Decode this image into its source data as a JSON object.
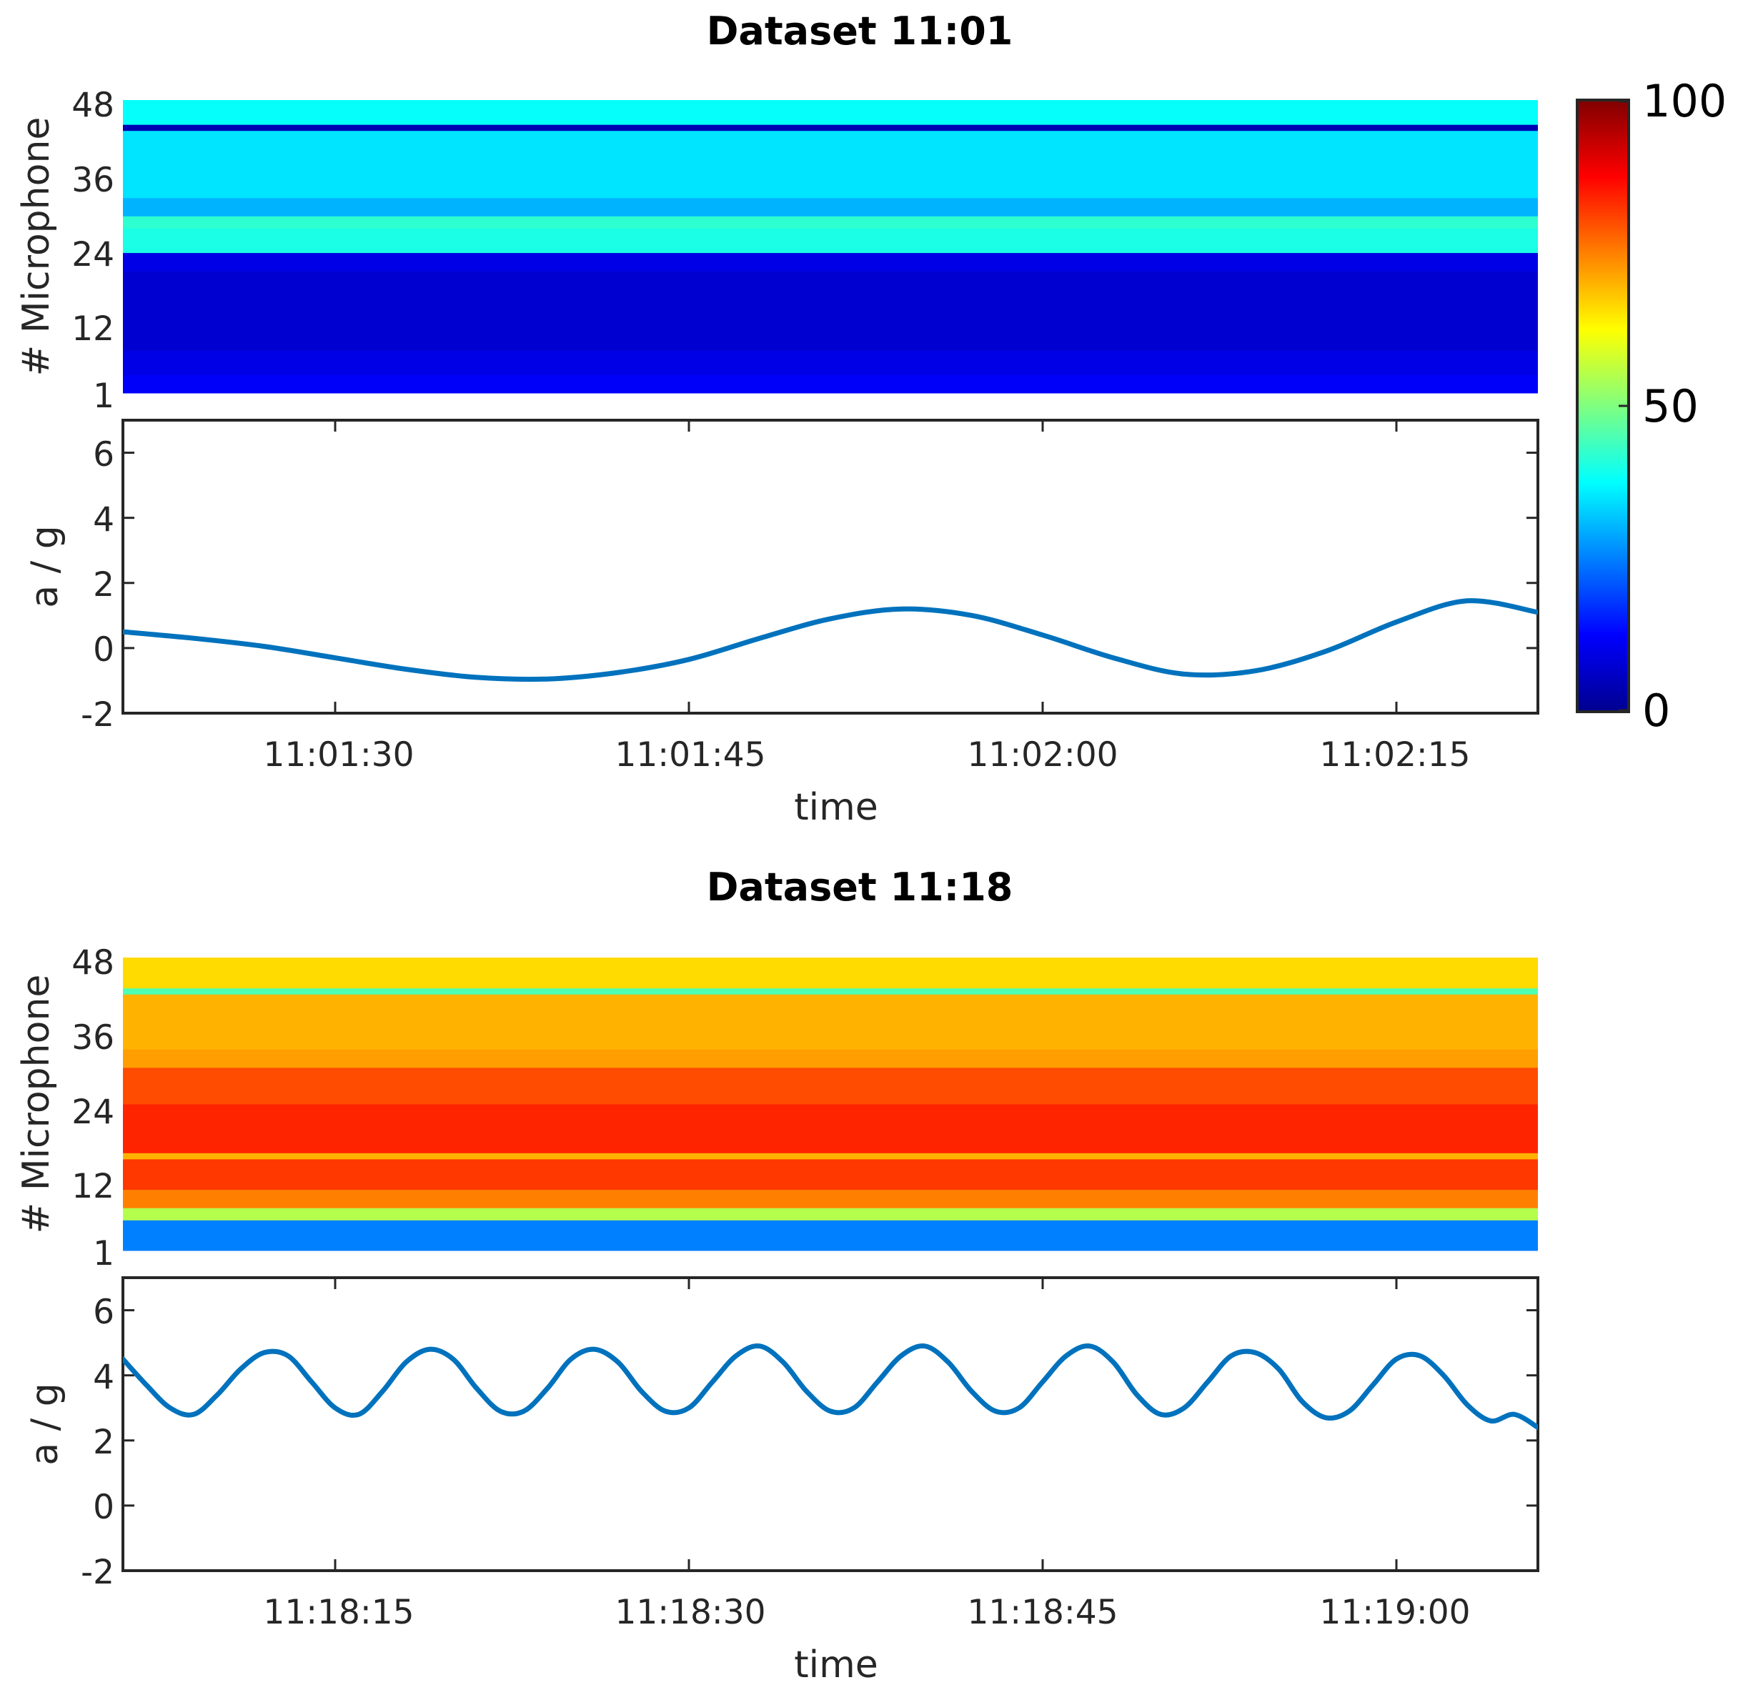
{
  "chart_data": [
    {
      "type": "heatmap",
      "title": "Dataset 11:01",
      "ylabel": "# Microphone",
      "yticks": [
        "1",
        "12",
        "24",
        "36",
        "48"
      ],
      "ylim": [
        1,
        48
      ],
      "colorbar": {
        "colormap": "jet",
        "range": [
          0,
          100
        ],
        "ticks": [
          "0",
          "50",
          "100"
        ]
      },
      "row_bands": [
        {
          "rows": [
            1,
            3
          ],
          "value": 12
        },
        {
          "rows": [
            4,
            7
          ],
          "value": 10
        },
        {
          "rows": [
            8,
            20
          ],
          "value": 8
        },
        {
          "rows": [
            21,
            23
          ],
          "value": 10
        },
        {
          "rows": [
            24,
            27
          ],
          "value": 40
        },
        {
          "rows": [
            28,
            29
          ],
          "value": 42
        },
        {
          "rows": [
            30,
            32
          ],
          "value": 30
        },
        {
          "rows": [
            33,
            43
          ],
          "value": 35
        },
        {
          "rows": [
            44,
            44
          ],
          "value": 5
        },
        {
          "rows": [
            45,
            48
          ],
          "value": 38
        }
      ]
    },
    {
      "type": "line",
      "ylabel": "a / g",
      "xlabel": "time",
      "ylim": [
        -2,
        7
      ],
      "yticks": [
        "-2",
        "0",
        "2",
        "4",
        "6"
      ],
      "xticks": [
        "11:01:30",
        "11:01:45",
        "11:02:00",
        "11:02:15"
      ],
      "xlim": [
        "11:01:21",
        "11:02:21"
      ],
      "line_color": "#0072bd",
      "x": [
        "11:01:21",
        "11:01:24",
        "11:01:27",
        "11:01:30",
        "11:01:33",
        "11:01:36",
        "11:01:39",
        "11:01:42",
        "11:01:45",
        "11:01:48",
        "11:01:51",
        "11:01:54",
        "11:01:57",
        "11:02:00",
        "11:02:03",
        "11:02:06",
        "11:02:09",
        "11:02:12",
        "11:02:15",
        "11:02:18",
        "11:02:21"
      ],
      "y": [
        0.5,
        0.3,
        0.05,
        -0.3,
        -0.65,
        -0.9,
        -0.95,
        -0.75,
        -0.35,
        0.3,
        0.9,
        1.2,
        1.0,
        0.4,
        -0.3,
        -0.8,
        -0.7,
        -0.1,
        0.8,
        1.45,
        1.1
      ]
    },
    {
      "type": "heatmap",
      "title": "Dataset 11:18",
      "ylabel": "# Microphone",
      "yticks": [
        "1",
        "12",
        "24",
        "36",
        "48"
      ],
      "ylim": [
        1,
        48
      ],
      "row_bands": [
        {
          "rows": [
            1,
            5
          ],
          "value": 25
        },
        {
          "rows": [
            6,
            7
          ],
          "value": 55
        },
        {
          "rows": [
            8,
            10
          ],
          "value": 75
        },
        {
          "rows": [
            11,
            15
          ],
          "value": 82
        },
        {
          "rows": [
            16,
            16
          ],
          "value": 70
        },
        {
          "rows": [
            17,
            24
          ],
          "value": 84
        },
        {
          "rows": [
            25,
            30
          ],
          "value": 80
        },
        {
          "rows": [
            31,
            33
          ],
          "value": 72
        },
        {
          "rows": [
            34,
            42
          ],
          "value": 70
        },
        {
          "rows": [
            43,
            43
          ],
          "value": 45
        },
        {
          "rows": [
            44,
            48
          ],
          "value": 66
        }
      ]
    },
    {
      "type": "line",
      "ylabel": "a / g",
      "xlabel": "time",
      "ylim": [
        -2,
        7
      ],
      "yticks": [
        "-2",
        "0",
        "2",
        "4",
        "6"
      ],
      "xticks": [
        "11:18:15",
        "11:18:30",
        "11:18:45",
        "11:19:00"
      ],
      "xlim": [
        "11:18:06",
        "11:19:06"
      ],
      "line_color": "#0072bd",
      "x": [
        "11:18:06",
        "11:18:07",
        "11:18:08",
        "11:18:09",
        "11:18:10",
        "11:18:11",
        "11:18:12",
        "11:18:13",
        "11:18:14",
        "11:18:15",
        "11:18:16",
        "11:18:17",
        "11:18:18",
        "11:18:19",
        "11:18:20",
        "11:18:21",
        "11:18:22",
        "11:18:23",
        "11:18:24",
        "11:18:25",
        "11:18:26",
        "11:18:27",
        "11:18:28",
        "11:18:29",
        "11:18:30",
        "11:18:31",
        "11:18:32",
        "11:18:33",
        "11:18:34",
        "11:18:35",
        "11:18:36",
        "11:18:37",
        "11:18:38",
        "11:18:39",
        "11:18:40",
        "11:18:41",
        "11:18:42",
        "11:18:43",
        "11:18:44",
        "11:18:45",
        "11:18:46",
        "11:18:47",
        "11:18:48",
        "11:18:49",
        "11:18:50",
        "11:18:51",
        "11:18:52",
        "11:18:53",
        "11:18:54",
        "11:18:55",
        "11:18:56",
        "11:18:57",
        "11:18:58",
        "11:18:59",
        "11:19:00",
        "11:19:01",
        "11:19:02",
        "11:19:03",
        "11:19:04",
        "11:19:05",
        "11:19:06"
      ],
      "y": [
        4.5,
        3.7,
        3.0,
        2.8,
        3.4,
        4.2,
        4.7,
        4.6,
        3.8,
        3.0,
        2.8,
        3.5,
        4.4,
        4.8,
        4.5,
        3.6,
        2.9,
        2.9,
        3.6,
        4.5,
        4.8,
        4.4,
        3.5,
        2.9,
        3.0,
        3.8,
        4.6,
        4.9,
        4.4,
        3.5,
        2.9,
        3.0,
        3.8,
        4.6,
        4.9,
        4.4,
        3.5,
        2.9,
        3.0,
        3.8,
        4.6,
        4.9,
        4.4,
        3.4,
        2.8,
        3.0,
        3.8,
        4.6,
        4.7,
        4.2,
        3.2,
        2.7,
        2.9,
        3.7,
        4.5,
        4.6,
        4.0,
        3.1,
        2.6,
        2.8,
        2.4
      ]
    }
  ]
}
